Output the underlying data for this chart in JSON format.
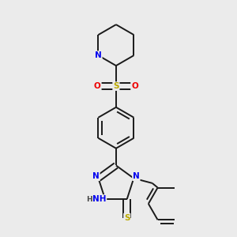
{
  "background_color": "#ebebeb",
  "bond_color": "#1a1a1a",
  "bond_width": 1.4,
  "atom_colors": {
    "N": "#0000ee",
    "S": "#bbaa00",
    "O": "#ee0000",
    "H": "#444444"
  },
  "font_size_atom": 7.5
}
